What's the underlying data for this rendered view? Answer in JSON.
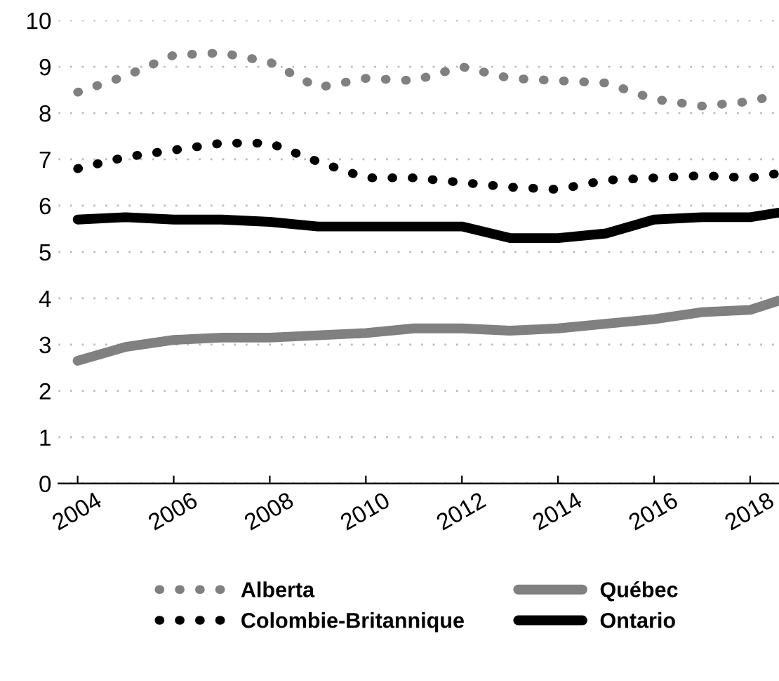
{
  "chart_data": {
    "type": "line",
    "x": [
      2004,
      2005,
      2006,
      2007,
      2008,
      2009,
      2010,
      2011,
      2012,
      2013,
      2014,
      2015,
      2016,
      2017,
      2018,
      2018.6
    ],
    "series": [
      {
        "name": "Alberta",
        "color": "#808080",
        "line_style": "dotted",
        "values": [
          8.45,
          8.8,
          9.25,
          9.3,
          9.1,
          8.55,
          8.75,
          8.7,
          9.0,
          8.75,
          8.7,
          8.65,
          8.3,
          8.15,
          8.25,
          8.4
        ]
      },
      {
        "name": "Colombie-Britannique",
        "color": "#000000",
        "line_style": "dotted",
        "values": [
          6.8,
          7.05,
          7.2,
          7.35,
          7.35,
          6.95,
          6.6,
          6.6,
          6.5,
          6.4,
          6.35,
          6.55,
          6.6,
          6.65,
          6.6,
          6.7
        ]
      },
      {
        "name": "Québec",
        "color": "#808080",
        "line_style": "solid",
        "values": [
          2.65,
          2.95,
          3.1,
          3.15,
          3.15,
          3.2,
          3.25,
          3.35,
          3.35,
          3.3,
          3.35,
          3.45,
          3.55,
          3.7,
          3.75,
          3.95
        ]
      },
      {
        "name": "Ontario",
        "color": "#000000",
        "line_style": "solid",
        "values": [
          5.7,
          5.75,
          5.7,
          5.7,
          5.65,
          5.55,
          5.55,
          5.55,
          5.55,
          5.3,
          5.3,
          5.4,
          5.7,
          5.75,
          5.75,
          5.85
        ]
      }
    ],
    "xlim": [
      2003.6,
      2018.6
    ],
    "xticks": [
      2004,
      2006,
      2008,
      2010,
      2012,
      2014,
      2016,
      2018
    ],
    "ylim": [
      0,
      10
    ],
    "yticks": [
      0,
      1,
      2,
      3,
      4,
      5,
      6,
      7,
      8,
      9,
      10
    ],
    "grid": "y",
    "legend": "bottom",
    "marker": "none"
  }
}
